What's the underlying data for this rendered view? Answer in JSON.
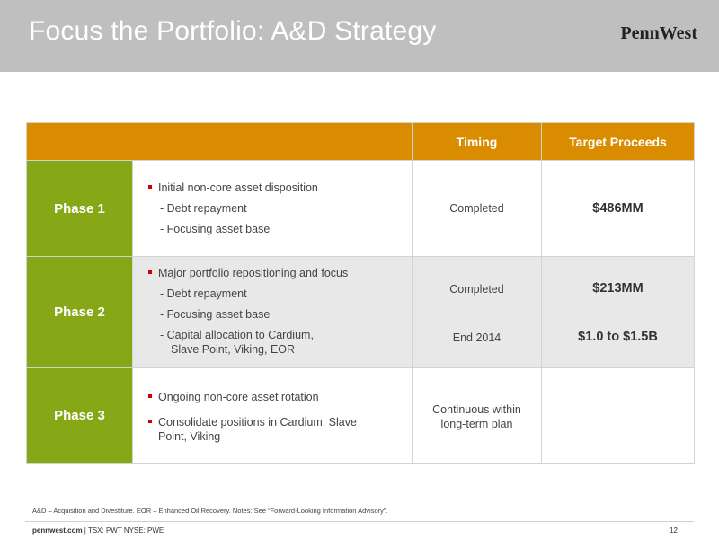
{
  "header": {
    "title": "Focus the Portfolio: A&D Strategy",
    "logo": "PennWest"
  },
  "table": {
    "columns": {
      "timing": "Timing",
      "proceeds": "Target Proceeds"
    },
    "rows": [
      {
        "phase": "Phase 1",
        "bullet1": "Initial non-core asset disposition",
        "sub1": "- Debt repayment",
        "sub2": "- Focusing asset base",
        "timing": "Completed",
        "proceeds": "$486MM"
      },
      {
        "phase": "Phase 2",
        "bullet1": "Major portfolio repositioning and focus",
        "sub1": "- Debt repayment",
        "sub2": "- Focusing asset base",
        "sub3a": "- Capital allocation to Cardium,",
        "sub3b": "Slave Point, Viking, EOR",
        "timing1": "Completed",
        "timing2": "End 2014",
        "proceeds1": "$213MM",
        "proceeds2": "$1.0 to $1.5B"
      },
      {
        "phase": "Phase 3",
        "bullet1": "Ongoing non-core asset rotation",
        "bullet2a": "Consolidate positions in Cardium, Slave",
        "bullet2b": "Point, Viking",
        "timing1": "Continuous within",
        "timing2": "long-term plan",
        "proceeds": ""
      }
    ]
  },
  "footnote": "A&D – Acquisition and Divestiture. EOR – Enhanced Oil Recovery. Notes: See “Forward-Looking Information Advisory”.",
  "footer": {
    "site": "pennwest.com",
    "tickers": " | TSX: PWT  NYSE: PWE",
    "page": "12"
  }
}
